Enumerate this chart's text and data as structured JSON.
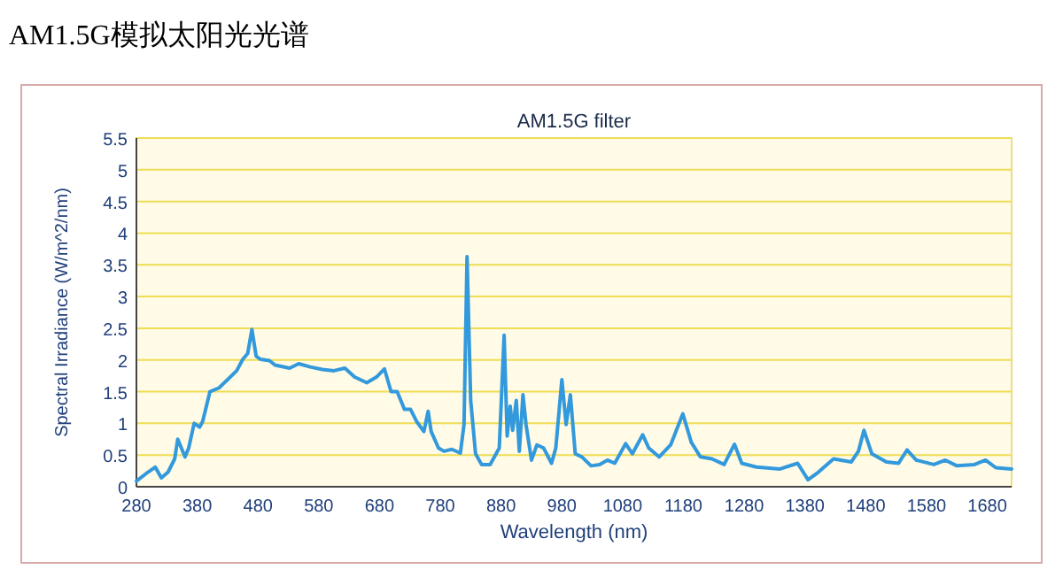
{
  "chart_data": {
    "type": "line",
    "title": "AM1.5G模拟太阳光光谱",
    "subtitle": "AM1.5G filter",
    "xlabel": "Wavelength (nm)",
    "ylabel": "Spectral Irradiance (W/m^2/nm)",
    "x": [
      280,
      299,
      311,
      321,
      332,
      343,
      348,
      360,
      366,
      375,
      384,
      389,
      401,
      416,
      430,
      445,
      455,
      463,
      470,
      477,
      484,
      499,
      508,
      532,
      547,
      566,
      586,
      605,
      623,
      639,
      659,
      675,
      688,
      699,
      709,
      721,
      731,
      741,
      753,
      760,
      765,
      777,
      786,
      799,
      813,
      819,
      824,
      830,
      838,
      848,
      862,
      877,
      885,
      890,
      895,
      899,
      905,
      910,
      916,
      921,
      930,
      939,
      950,
      963,
      970,
      980,
      987,
      994,
      1002,
      1013,
      1028,
      1042,
      1055,
      1067,
      1085,
      1096,
      1113,
      1123,
      1140,
      1159,
      1179,
      1193,
      1208,
      1227,
      1247,
      1264,
      1276,
      1300,
      1339,
      1368,
      1385,
      1402,
      1427,
      1456,
      1468,
      1477,
      1490,
      1514,
      1534,
      1548,
      1563,
      1592,
      1611,
      1630,
      1659,
      1677,
      1694,
      1720
    ],
    "series": [
      {
        "color": "#3399dd",
        "values": [
          0.09,
          0.23,
          0.31,
          0.14,
          0.23,
          0.44,
          0.75,
          0.47,
          0.61,
          1.0,
          0.94,
          1.03,
          1.5,
          1.56,
          1.69,
          1.83,
          2.01,
          2.1,
          2.48,
          2.06,
          2.01,
          1.99,
          1.92,
          1.87,
          1.94,
          1.89,
          1.85,
          1.83,
          1.87,
          1.73,
          1.64,
          1.73,
          1.86,
          1.5,
          1.5,
          1.22,
          1.22,
          1.03,
          0.87,
          1.19,
          0.87,
          0.61,
          0.56,
          0.59,
          0.53,
          0.98,
          3.63,
          1.36,
          0.52,
          0.35,
          0.35,
          0.61,
          2.39,
          0.8,
          1.27,
          0.89,
          1.36,
          0.56,
          1.45,
          0.98,
          0.42,
          0.66,
          0.61,
          0.37,
          0.61,
          1.69,
          0.98,
          1.45,
          0.52,
          0.47,
          0.33,
          0.35,
          0.42,
          0.37,
          0.68,
          0.52,
          0.82,
          0.61,
          0.47,
          0.66,
          1.15,
          0.7,
          0.47,
          0.44,
          0.35,
          0.67,
          0.37,
          0.31,
          0.28,
          0.37,
          0.11,
          0.23,
          0.44,
          0.39,
          0.56,
          0.89,
          0.52,
          0.39,
          0.37,
          0.58,
          0.42,
          0.35,
          0.42,
          0.33,
          0.35,
          0.42,
          0.3,
          0.28
        ]
      }
    ],
    "xlim": [
      280,
      1720
    ],
    "xticks": [
      280,
      380,
      480,
      580,
      680,
      780,
      880,
      980,
      1080,
      1180,
      1280,
      1380,
      1480,
      1580,
      1680
    ],
    "ylim": [
      0,
      5.5
    ],
    "yticks": [
      0,
      0.5,
      1,
      1.5,
      2,
      2.5,
      3,
      3.5,
      4,
      4.5,
      5,
      5.5
    ],
    "grid": "y",
    "line_style": "solid",
    "marker": "none"
  }
}
